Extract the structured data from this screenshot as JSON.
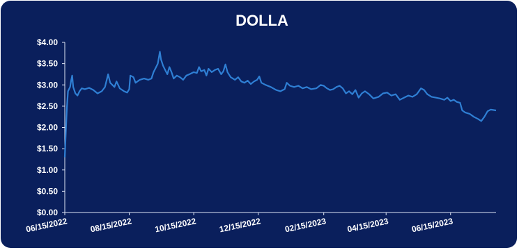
{
  "colors": {
    "background": "#0a1f5c",
    "line": "#2f7fd4",
    "axis": "#dfe6f5",
    "text": "#ffffff"
  },
  "chart_data": {
    "type": "line",
    "title": "DOLLA",
    "xlabel": "",
    "ylabel": "",
    "ylim": [
      0,
      4
    ],
    "y_ticks": [
      "$0.00",
      "$0.50",
      "$1.00",
      "$1.50",
      "$2.00",
      "$2.50",
      "$3.00",
      "$3.50",
      "$4.00"
    ],
    "x_ticks": [
      "06/15/2022",
      "08/15/2022",
      "10/15/2022",
      "12/15/2022",
      "02/15/2023",
      "04/15/2023",
      "06/15/2023"
    ],
    "x_range": [
      "2022-06-15",
      "2023-07-28"
    ],
    "grid": false,
    "series": [
      {
        "values": [
          [
            "2022-06-15",
            1.3
          ],
          [
            "2022-06-16",
            1.9
          ],
          [
            "2022-06-17",
            2.45
          ],
          [
            "2022-06-18",
            2.85
          ],
          [
            "2022-06-20",
            2.95
          ],
          [
            "2022-06-21",
            3.1
          ],
          [
            "2022-06-22",
            3.22
          ],
          [
            "2022-06-23",
            2.95
          ],
          [
            "2022-06-25",
            2.8
          ],
          [
            "2022-06-27",
            2.75
          ],
          [
            "2022-06-29",
            2.85
          ],
          [
            "2022-07-01",
            2.92
          ],
          [
            "2022-07-04",
            2.9
          ],
          [
            "2022-07-08",
            2.93
          ],
          [
            "2022-07-12",
            2.88
          ],
          [
            "2022-07-16",
            2.8
          ],
          [
            "2022-07-20",
            2.85
          ],
          [
            "2022-07-23",
            2.95
          ],
          [
            "2022-07-26",
            3.25
          ],
          [
            "2022-07-28",
            3.05
          ],
          [
            "2022-08-01",
            2.95
          ],
          [
            "2022-08-03",
            3.08
          ],
          [
            "2022-08-06",
            2.92
          ],
          [
            "2022-08-10",
            2.85
          ],
          [
            "2022-08-13",
            2.82
          ],
          [
            "2022-08-15",
            2.9
          ],
          [
            "2022-08-16",
            3.22
          ],
          [
            "2022-08-19",
            3.18
          ],
          [
            "2022-08-21",
            3.05
          ],
          [
            "2022-08-25",
            3.12
          ],
          [
            "2022-08-29",
            3.15
          ],
          [
            "2022-09-02",
            3.12
          ],
          [
            "2022-09-05",
            3.15
          ],
          [
            "2022-09-07",
            3.3
          ],
          [
            "2022-09-09",
            3.4
          ],
          [
            "2022-09-11",
            3.5
          ],
          [
            "2022-09-13",
            3.78
          ],
          [
            "2022-09-14",
            3.6
          ],
          [
            "2022-09-16",
            3.45
          ],
          [
            "2022-09-18",
            3.35
          ],
          [
            "2022-09-20",
            3.25
          ],
          [
            "2022-09-22",
            3.42
          ],
          [
            "2022-09-24",
            3.3
          ],
          [
            "2022-09-26",
            3.15
          ],
          [
            "2022-09-29",
            3.22
          ],
          [
            "2022-10-02",
            3.18
          ],
          [
            "2022-10-05",
            3.12
          ],
          [
            "2022-10-08",
            3.22
          ],
          [
            "2022-10-11",
            3.25
          ],
          [
            "2022-10-15",
            3.3
          ],
          [
            "2022-10-18",
            3.28
          ],
          [
            "2022-10-20",
            3.42
          ],
          [
            "2022-10-22",
            3.32
          ],
          [
            "2022-10-25",
            3.35
          ],
          [
            "2022-10-27",
            3.22
          ],
          [
            "2022-10-29",
            3.38
          ],
          [
            "2022-11-01",
            3.3
          ],
          [
            "2022-11-04",
            3.35
          ],
          [
            "2022-11-07",
            3.38
          ],
          [
            "2022-11-10",
            3.25
          ],
          [
            "2022-11-12",
            3.32
          ],
          [
            "2022-11-14",
            3.48
          ],
          [
            "2022-11-16",
            3.3
          ],
          [
            "2022-11-19",
            3.18
          ],
          [
            "2022-11-23",
            3.12
          ],
          [
            "2022-11-26",
            3.18
          ],
          [
            "2022-11-29",
            3.08
          ],
          [
            "2022-12-02",
            3.05
          ],
          [
            "2022-12-05",
            3.1
          ],
          [
            "2022-12-08",
            3.02
          ],
          [
            "2022-12-11",
            3.08
          ],
          [
            "2022-12-14",
            3.12
          ],
          [
            "2022-12-16",
            3.2
          ],
          [
            "2022-12-18",
            3.05
          ],
          [
            "2022-12-22",
            3.0
          ],
          [
            "2022-12-27",
            2.95
          ],
          [
            "2023-01-01",
            2.88
          ],
          [
            "2023-01-05",
            2.85
          ],
          [
            "2023-01-09",
            2.9
          ],
          [
            "2023-01-11",
            3.05
          ],
          [
            "2023-01-14",
            2.98
          ],
          [
            "2023-01-18",
            2.95
          ],
          [
            "2023-01-22",
            2.98
          ],
          [
            "2023-01-26",
            2.92
          ],
          [
            "2023-01-30",
            2.95
          ],
          [
            "2023-02-03",
            2.9
          ],
          [
            "2023-02-08",
            2.92
          ],
          [
            "2023-02-12",
            3.0
          ],
          [
            "2023-02-15",
            2.98
          ],
          [
            "2023-02-18",
            2.92
          ],
          [
            "2023-02-21",
            2.88
          ],
          [
            "2023-02-24",
            2.9
          ],
          [
            "2023-02-27",
            2.95
          ],
          [
            "2023-03-02",
            2.98
          ],
          [
            "2023-03-05",
            2.92
          ],
          [
            "2023-03-08",
            2.8
          ],
          [
            "2023-03-11",
            2.85
          ],
          [
            "2023-03-14",
            2.78
          ],
          [
            "2023-03-17",
            2.88
          ],
          [
            "2023-03-20",
            2.7
          ],
          [
            "2023-03-23",
            2.8
          ],
          [
            "2023-03-26",
            2.85
          ],
          [
            "2023-03-30",
            2.78
          ],
          [
            "2023-04-03",
            2.68
          ],
          [
            "2023-04-08",
            2.72
          ],
          [
            "2023-04-12",
            2.8
          ],
          [
            "2023-04-16",
            2.82
          ],
          [
            "2023-04-20",
            2.75
          ],
          [
            "2023-04-24",
            2.78
          ],
          [
            "2023-04-28",
            2.65
          ],
          [
            "2023-05-02",
            2.7
          ],
          [
            "2023-05-06",
            2.75
          ],
          [
            "2023-05-10",
            2.72
          ],
          [
            "2023-05-14",
            2.78
          ],
          [
            "2023-05-18",
            2.92
          ],
          [
            "2023-05-21",
            2.88
          ],
          [
            "2023-05-24",
            2.78
          ],
          [
            "2023-05-28",
            2.72
          ],
          [
            "2023-06-01",
            2.7
          ],
          [
            "2023-06-05",
            2.68
          ],
          [
            "2023-06-09",
            2.65
          ],
          [
            "2023-06-12",
            2.7
          ],
          [
            "2023-06-15",
            2.62
          ],
          [
            "2023-06-18",
            2.65
          ],
          [
            "2023-06-21",
            2.6
          ],
          [
            "2023-06-24",
            2.58
          ],
          [
            "2023-06-26",
            2.4
          ],
          [
            "2023-06-29",
            2.35
          ],
          [
            "2023-07-03",
            2.32
          ],
          [
            "2023-07-07",
            2.25
          ],
          [
            "2023-07-11",
            2.2
          ],
          [
            "2023-07-14",
            2.15
          ],
          [
            "2023-07-17",
            2.25
          ],
          [
            "2023-07-20",
            2.38
          ],
          [
            "2023-07-23",
            2.42
          ],
          [
            "2023-07-28",
            2.4
          ]
        ]
      }
    ]
  }
}
